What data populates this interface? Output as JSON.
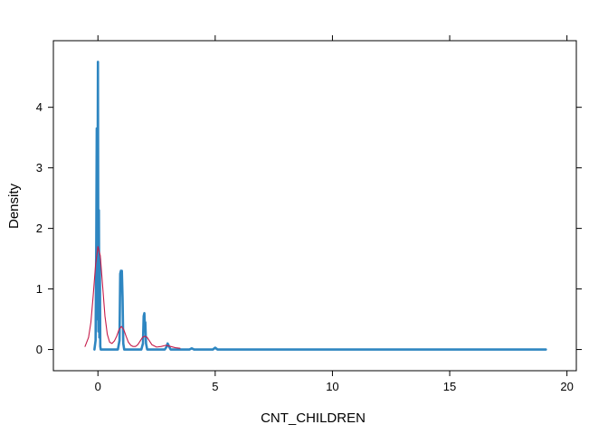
{
  "chart_data": {
    "type": "line",
    "title": "",
    "xlabel": "CNT_CHILDREN",
    "ylabel": "Density",
    "xlim": [
      -1.9,
      20.4
    ],
    "ylim": [
      -0.35,
      5.1
    ],
    "x_ticks": [
      0,
      5,
      10,
      15,
      20
    ],
    "x_tick_labels": [
      "0",
      "5",
      "10",
      "15",
      "20"
    ],
    "y_ticks": [
      0,
      1,
      2,
      3,
      4
    ],
    "y_tick_labels": [
      "0",
      "1",
      "2",
      "3",
      "4"
    ],
    "grid": false,
    "legend": "none",
    "series": [
      {
        "color": "#2e86c1",
        "style": "thick-line",
        "x": [
          -0.15,
          -0.1,
          -0.07,
          -0.05,
          -0.03,
          0.0,
          0.02,
          0.04,
          0.06,
          0.08,
          0.1,
          0.12,
          0.15,
          0.2,
          0.85,
          0.92,
          0.95,
          0.98,
          1.0,
          1.02,
          1.05,
          1.08,
          1.12,
          1.2,
          1.85,
          1.92,
          1.95,
          1.98,
          2.0,
          2.02,
          2.05,
          2.1,
          2.2,
          2.85,
          2.92,
          2.97,
          3.0,
          3.03,
          3.1,
          3.2,
          3.9,
          4.0,
          4.1,
          4.9,
          5.0,
          5.1,
          6.0,
          10.0,
          15.0,
          19.1
        ],
        "y": [
          0.0,
          0.15,
          1.8,
          3.65,
          0.5,
          4.75,
          0.3,
          2.3,
          0.2,
          1.5,
          0.05,
          0.0,
          0.0,
          0.0,
          0.0,
          0.15,
          1.25,
          1.3,
          1.25,
          1.3,
          0.85,
          0.1,
          0.0,
          0.0,
          0.0,
          0.1,
          0.55,
          0.6,
          0.4,
          0.45,
          0.1,
          0.0,
          0.0,
          0.0,
          0.04,
          0.1,
          0.08,
          0.05,
          0.0,
          0.0,
          0.0,
          0.02,
          0.0,
          0.0,
          0.03,
          0.0,
          0.0,
          0.0,
          0.0,
          0.0
        ]
      },
      {
        "color": "#c51b4a",
        "style": "thin-line",
        "x": [
          -0.55,
          -0.4,
          -0.3,
          -0.2,
          -0.1,
          0.0,
          0.1,
          0.2,
          0.3,
          0.4,
          0.5,
          0.6,
          0.7,
          0.8,
          0.9,
          1.0,
          1.1,
          1.2,
          1.3,
          1.4,
          1.5,
          1.6,
          1.7,
          1.8,
          1.9,
          2.0,
          2.1,
          2.2,
          2.3,
          2.5,
          2.7,
          2.9,
          3.0,
          3.1,
          3.3,
          3.5
        ],
        "y": [
          0.05,
          0.2,
          0.45,
          0.9,
          1.4,
          1.7,
          1.55,
          1.05,
          0.55,
          0.25,
          0.12,
          0.1,
          0.14,
          0.22,
          0.33,
          0.38,
          0.33,
          0.22,
          0.12,
          0.07,
          0.05,
          0.05,
          0.08,
          0.14,
          0.2,
          0.22,
          0.2,
          0.14,
          0.08,
          0.04,
          0.05,
          0.07,
          0.06,
          0.05,
          0.03,
          0.02
        ]
      }
    ]
  }
}
